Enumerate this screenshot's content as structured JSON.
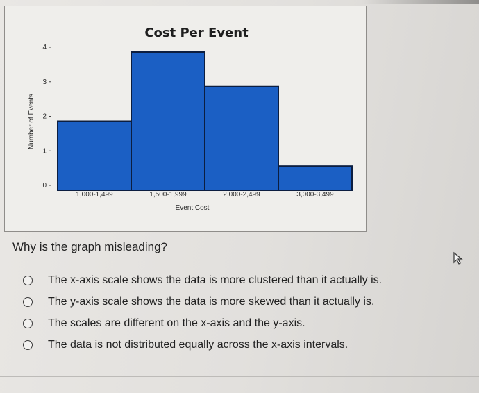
{
  "question": "Why is the graph misleading?",
  "options": [
    "The x-axis scale shows the data is more clustered than it actually is.",
    "The y-axis scale shows the data is more skewed than it actually is.",
    "The scales are different on the x-axis and the y-axis.",
    "The data is not distributed equally across the x-axis intervals."
  ],
  "icons": {
    "cursor": "cursor-arrow-icon"
  },
  "colors": {
    "bar": "#1b5fc4",
    "bar_edge": "#0c1e40"
  },
  "chart_data": {
    "type": "bar",
    "title": "Cost Per Event",
    "xlabel": "Event Cost",
    "ylabel": "Number of Events",
    "categories": [
      "1,000-1,499",
      "1,500-1,999",
      "2,000-2,499",
      "3,000-3,499"
    ],
    "values": [
      2,
      4,
      3,
      0.7
    ],
    "ylim": [
      0,
      4
    ],
    "yticks": [
      "0",
      "1",
      "2",
      "3",
      "4"
    ],
    "grid": false
  }
}
